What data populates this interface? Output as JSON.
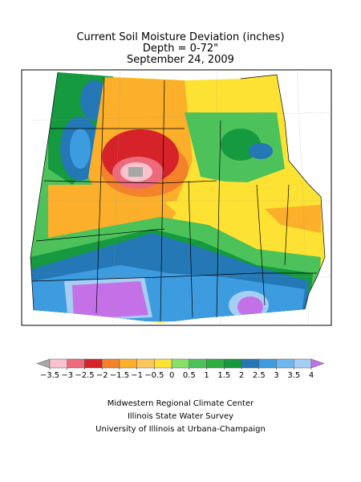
{
  "title": [
    "Current Soil Moisture Deviation (inches)",
    "Depth = 0-72\"",
    "September 24, 2009"
  ],
  "legend": {
    "ticks": [
      {
        "value": -3.5,
        "label": "−3.5"
      },
      {
        "value": -3,
        "label": "−3"
      },
      {
        "value": -2.5,
        "label": "−2.5"
      },
      {
        "value": -2,
        "label": "−2"
      },
      {
        "value": -1.5,
        "label": "−1.5"
      },
      {
        "value": -1,
        "label": "−1"
      },
      {
        "value": -0.5,
        "label": "−0.5"
      },
      0,
      0.5,
      1,
      1.5,
      2,
      2.5,
      3,
      3.5,
      4
    ],
    "colors": [
      "#a7a7a7",
      "#f9c2cc",
      "#ec6a7a",
      "#d62229",
      "#f3822a",
      "#fbaf2b",
      "#fdc55d",
      "#fde234",
      "#86e06a",
      "#4dc25a",
      "#2fae3f",
      "#159a3f",
      "#2378b5",
      "#3d9be0",
      "#6db7ee",
      "#a6cdf2",
      "#c471e8"
    ]
  },
  "credits": [
    "Midwestern Regional Climate Center",
    "Illinois State Water Survey",
    "University of Illinois at Urbana-Champaign"
  ]
}
